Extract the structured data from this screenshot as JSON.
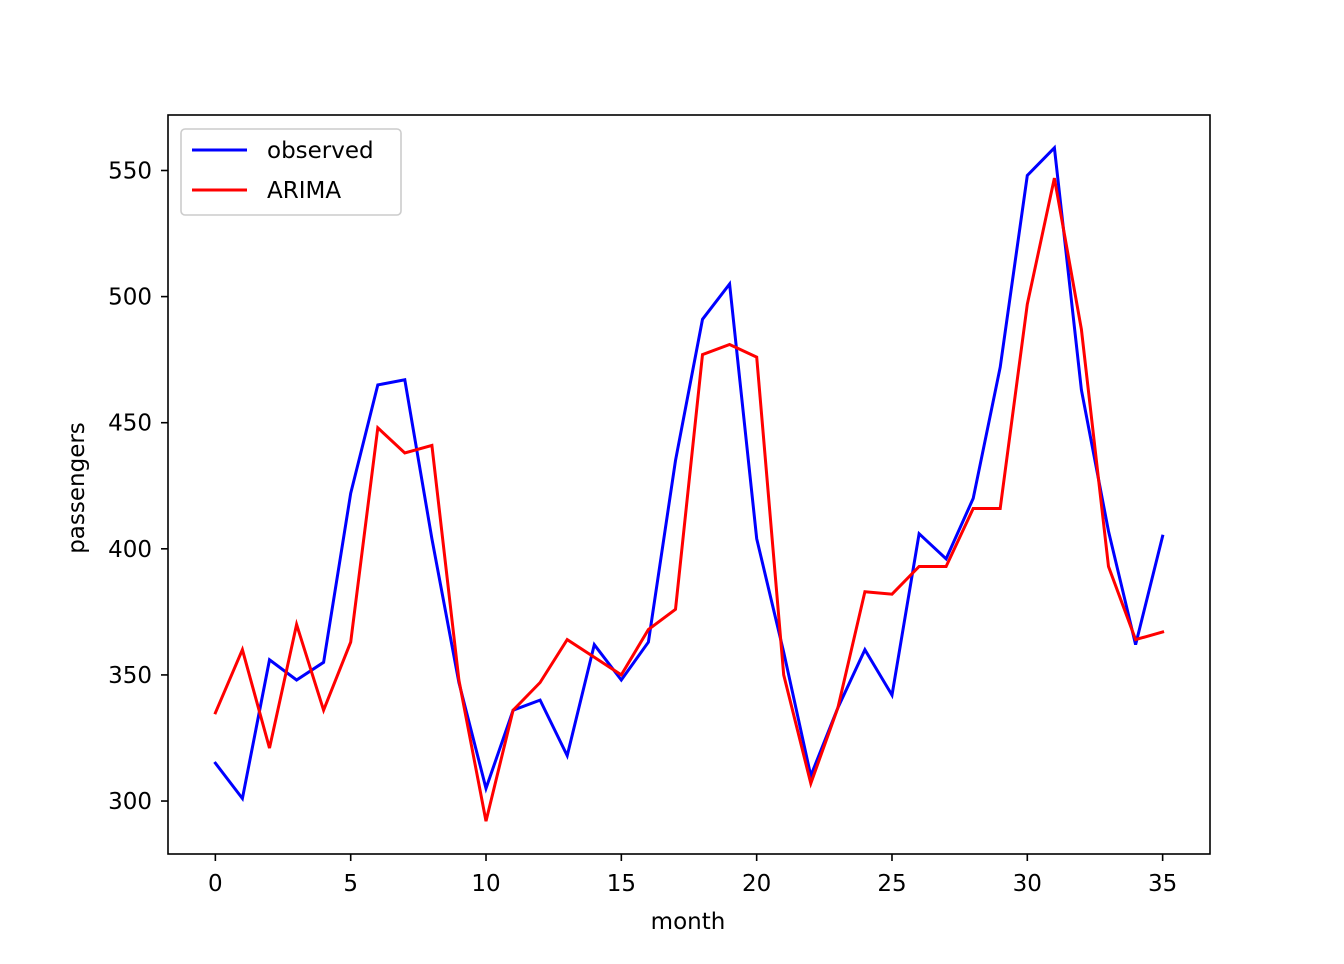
{
  "chart_data": {
    "type": "line",
    "title": "",
    "xlabel": "month",
    "ylabel": "passengers",
    "xlim": [
      -1.75,
      36.75
    ],
    "ylim": [
      279,
      572
    ],
    "xticks": [
      0,
      5,
      10,
      15,
      20,
      25,
      30,
      35
    ],
    "yticks": [
      300,
      350,
      400,
      450,
      500,
      550
    ],
    "xtick_labels": [
      "0",
      "5",
      "10",
      "15",
      "20",
      "25",
      "30",
      "35"
    ],
    "ytick_labels": [
      "300",
      "350",
      "400",
      "450",
      "500",
      "550"
    ],
    "grid": false,
    "legend_position": "top-left",
    "x": [
      0,
      1,
      2,
      3,
      4,
      5,
      6,
      7,
      8,
      9,
      10,
      11,
      12,
      13,
      14,
      15,
      16,
      17,
      18,
      19,
      20,
      21,
      22,
      23,
      24,
      25,
      26,
      27,
      28,
      29,
      30,
      31,
      32,
      33,
      34,
      35
    ],
    "series": [
      {
        "name": "observed",
        "color": "#0000ff",
        "values": [
          315,
          301,
          356,
          348,
          355,
          422,
          465,
          467,
          404,
          347,
          305,
          336,
          340,
          318,
          362,
          348,
          363,
          435,
          491,
          505,
          404,
          359,
          310,
          337,
          360,
          342,
          406,
          396,
          420,
          472,
          548,
          559,
          463,
          407,
          362,
          405
        ]
      },
      {
        "name": "ARIMA",
        "color": "#ff0000",
        "values": [
          335,
          360,
          321,
          370,
          336,
          363,
          448,
          438,
          441,
          348,
          292,
          336,
          347,
          364,
          357,
          350,
          368,
          376,
          477,
          481,
          476,
          350,
          307,
          337,
          383,
          382,
          393,
          393,
          416,
          416,
          497,
          547,
          487,
          393,
          364,
          367
        ]
      }
    ]
  }
}
